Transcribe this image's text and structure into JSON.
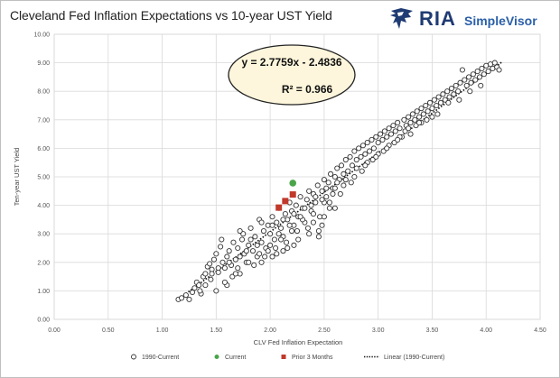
{
  "header": {
    "title": "Cleveland Fed Inflation Expectations vs 10-year UST Yield",
    "brand_name": "RIA",
    "brand_sub": "SimpleVisor",
    "brand_color": "#1f3b73",
    "logo_icon": "eagle-icon"
  },
  "chart_data": {
    "type": "scatter",
    "xlabel": "CLV Fed Inflation Expectation",
    "ylabel": "Ten-year UST Yield",
    "xlim": [
      0,
      4.5
    ],
    "ylim": [
      0,
      10
    ],
    "xticks": [
      "0.00",
      "0.50",
      "1.00",
      "1.50",
      "2.00",
      "2.50",
      "3.00",
      "3.50",
      "4.00",
      "4.50"
    ],
    "yticks": [
      "0.00",
      "1.00",
      "2.00",
      "3.00",
      "4.00",
      "5.00",
      "6.00",
      "7.00",
      "8.00",
      "9.00",
      "10.00"
    ],
    "grid": true,
    "legend_position": "bottom",
    "annotation": {
      "equation": "y = 2.7759x - 2.4836",
      "r_squared": "R² = 0.966"
    },
    "trendline": {
      "slope": 2.7759,
      "intercept": -2.4836,
      "x_range": [
        1.15,
        4.15
      ]
    },
    "series": [
      {
        "name": "1990-Current",
        "marker": "hollow-circle",
        "color": "#333333",
        "points": [
          [
            1.15,
            0.7
          ],
          [
            1.18,
            0.75
          ],
          [
            1.22,
            0.85
          ],
          [
            1.25,
            0.7
          ],
          [
            1.28,
            0.95
          ],
          [
            1.3,
            1.1
          ],
          [
            1.32,
            1.3
          ],
          [
            1.34,
            1.2
          ],
          [
            1.36,
            0.9
          ],
          [
            1.38,
            1.5
          ],
          [
            1.4,
            1.6
          ],
          [
            1.42,
            1.85
          ],
          [
            1.44,
            1.95
          ],
          [
            1.46,
            1.75
          ],
          [
            1.48,
            2.1
          ],
          [
            1.5,
            2.3
          ],
          [
            1.52,
            1.65
          ],
          [
            1.54,
            2.55
          ],
          [
            1.56,
            2.0
          ],
          [
            1.58,
            1.8
          ],
          [
            1.6,
            2.2
          ],
          [
            1.62,
            2.4
          ],
          [
            1.64,
            1.9
          ],
          [
            1.66,
            2.7
          ],
          [
            1.68,
            2.1
          ],
          [
            1.7,
            2.5
          ],
          [
            1.72,
            1.6
          ],
          [
            1.74,
            2.8
          ],
          [
            1.76,
            2.3
          ],
          [
            1.78,
            2.0
          ],
          [
            1.8,
            2.6
          ],
          [
            1.82,
            3.2
          ],
          [
            1.84,
            2.4
          ],
          [
            1.86,
            2.9
          ],
          [
            1.88,
            2.2
          ],
          [
            1.9,
            3.5
          ],
          [
            1.92,
            2.7
          ],
          [
            1.94,
            3.1
          ],
          [
            1.96,
            2.5
          ],
          [
            1.98,
            3.3
          ],
          [
            2.0,
            3.0
          ],
          [
            2.02,
            3.6
          ],
          [
            2.04,
            2.8
          ],
          [
            2.06,
            3.4
          ],
          [
            2.08,
            3.9
          ],
          [
            2.1,
            3.2
          ],
          [
            2.12,
            2.9
          ],
          [
            2.14,
            3.7
          ],
          [
            2.16,
            3.5
          ],
          [
            2.18,
            4.1
          ],
          [
            2.2,
            3.8
          ],
          [
            2.22,
            3.3
          ],
          [
            2.24,
            4.0
          ],
          [
            2.26,
            3.6
          ],
          [
            2.28,
            4.3
          ],
          [
            2.3,
            3.9
          ],
          [
            2.32,
            3.4
          ],
          [
            2.34,
            4.2
          ],
          [
            2.36,
            4.5
          ],
          [
            2.38,
            3.8
          ],
          [
            2.4,
            4.4
          ],
          [
            2.42,
            4.1
          ],
          [
            2.44,
            4.7
          ],
          [
            2.46,
            3.6
          ],
          [
            2.48,
            4.5
          ],
          [
            2.5,
            4.9
          ],
          [
            2.52,
            4.3
          ],
          [
            2.54,
            4.8
          ],
          [
            2.56,
            5.1
          ],
          [
            2.58,
            4.6
          ],
          [
            2.6,
            5.0
          ],
          [
            2.62,
            5.3
          ],
          [
            2.64,
            4.9
          ],
          [
            2.66,
            5.4
          ],
          [
            2.68,
            5.1
          ],
          [
            2.7,
            5.6
          ],
          [
            2.72,
            5.2
          ],
          [
            2.74,
            5.7
          ],
          [
            2.76,
            5.4
          ],
          [
            2.78,
            5.9
          ],
          [
            2.8,
            5.6
          ],
          [
            2.82,
            6.0
          ],
          [
            2.84,
            5.7
          ],
          [
            2.86,
            6.1
          ],
          [
            2.88,
            5.8
          ],
          [
            2.9,
            6.2
          ],
          [
            2.92,
            5.9
          ],
          [
            2.94,
            6.3
          ],
          [
            2.96,
            6.0
          ],
          [
            2.98,
            6.4
          ],
          [
            3.0,
            6.2
          ],
          [
            3.02,
            6.5
          ],
          [
            3.04,
            6.3
          ],
          [
            3.06,
            6.6
          ],
          [
            3.08,
            6.4
          ],
          [
            3.1,
            6.7
          ],
          [
            3.12,
            6.5
          ],
          [
            3.14,
            6.8
          ],
          [
            3.16,
            6.6
          ],
          [
            3.18,
            6.9
          ],
          [
            3.2,
            6.7
          ],
          [
            3.22,
            6.4
          ],
          [
            3.24,
            7.0
          ],
          [
            3.26,
            6.8
          ],
          [
            3.28,
            7.1
          ],
          [
            3.3,
            6.9
          ],
          [
            3.32,
            7.2
          ],
          [
            3.34,
            7.0
          ],
          [
            3.36,
            7.3
          ],
          [
            3.38,
            7.1
          ],
          [
            3.4,
            7.4
          ],
          [
            3.42,
            7.2
          ],
          [
            3.44,
            7.5
          ],
          [
            3.46,
            7.3
          ],
          [
            3.48,
            7.6
          ],
          [
            3.5,
            7.4
          ],
          [
            3.52,
            7.7
          ],
          [
            3.54,
            7.5
          ],
          [
            3.56,
            7.8
          ],
          [
            3.58,
            7.6
          ],
          [
            3.6,
            7.9
          ],
          [
            3.62,
            7.7
          ],
          [
            3.64,
            8.0
          ],
          [
            3.66,
            7.8
          ],
          [
            3.68,
            8.1
          ],
          [
            3.7,
            7.9
          ],
          [
            3.72,
            8.2
          ],
          [
            3.74,
            8.0
          ],
          [
            3.76,
            8.3
          ],
          [
            3.78,
            8.75
          ],
          [
            3.8,
            8.4
          ],
          [
            3.82,
            8.2
          ],
          [
            3.84,
            8.5
          ],
          [
            3.86,
            8.3
          ],
          [
            3.88,
            8.6
          ],
          [
            3.9,
            8.4
          ],
          [
            3.92,
            8.7
          ],
          [
            3.94,
            8.5
          ],
          [
            3.96,
            8.8
          ],
          [
            3.98,
            8.6
          ],
          [
            4.0,
            8.9
          ],
          [
            4.02,
            8.7
          ],
          [
            4.04,
            8.95
          ],
          [
            4.06,
            8.8
          ],
          [
            4.08,
            9.0
          ],
          [
            4.1,
            8.85
          ],
          [
            4.12,
            8.75
          ],
          [
            1.45,
            1.4
          ],
          [
            1.55,
            2.8
          ],
          [
            1.65,
            1.5
          ],
          [
            1.75,
            3.0
          ],
          [
            1.85,
            1.9
          ],
          [
            1.95,
            2.2
          ],
          [
            2.05,
            2.5
          ],
          [
            2.15,
            2.7
          ],
          [
            2.25,
            3.1
          ],
          [
            2.35,
            3.2
          ],
          [
            2.45,
            3.1
          ],
          [
            2.55,
            3.9
          ],
          [
            2.65,
            4.4
          ],
          [
            2.75,
            4.8
          ],
          [
            2.85,
            5.2
          ],
          [
            2.95,
            5.6
          ],
          [
            3.05,
            5.9
          ],
          [
            3.15,
            6.2
          ],
          [
            3.25,
            6.6
          ],
          [
            3.35,
            6.8
          ],
          [
            3.45,
            7.0
          ],
          [
            3.55,
            7.2
          ],
          [
            3.65,
            7.6
          ],
          [
            3.75,
            7.7
          ],
          [
            3.85,
            8.0
          ],
          [
            3.95,
            8.2
          ],
          [
            1.6,
            1.2
          ],
          [
            1.7,
            1.8
          ],
          [
            1.8,
            2.0
          ],
          [
            1.9,
            2.3
          ],
          [
            2.0,
            2.6
          ],
          [
            2.1,
            2.8
          ],
          [
            2.2,
            3.1
          ],
          [
            2.3,
            3.5
          ],
          [
            2.4,
            3.7
          ],
          [
            2.5,
            4.1
          ],
          [
            2.6,
            4.6
          ],
          [
            2.7,
            4.9
          ],
          [
            2.8,
            5.3
          ],
          [
            2.9,
            5.5
          ],
          [
            3.0,
            5.8
          ],
          [
            3.1,
            6.1
          ],
          [
            3.2,
            6.4
          ],
          [
            3.3,
            6.5
          ],
          [
            3.4,
            6.9
          ],
          [
            3.5,
            7.1
          ],
          [
            1.5,
            1.0
          ],
          [
            1.58,
            1.3
          ],
          [
            1.68,
            1.6
          ],
          [
            1.78,
            2.4
          ],
          [
            1.88,
            2.6
          ],
          [
            1.98,
            2.4
          ],
          [
            2.08,
            3.0
          ],
          [
            2.18,
            3.3
          ],
          [
            2.28,
            3.6
          ],
          [
            2.38,
            4.0
          ],
          [
            2.48,
            4.2
          ],
          [
            2.58,
            4.4
          ],
          [
            2.68,
            4.7
          ],
          [
            2.78,
            5.0
          ],
          [
            2.88,
            5.4
          ],
          [
            2.98,
            5.7
          ],
          [
            3.08,
            6.0
          ],
          [
            3.18,
            6.3
          ],
          [
            3.28,
            6.7
          ],
          [
            3.38,
            6.9
          ],
          [
            1.72,
            3.1
          ],
          [
            1.82,
            2.8
          ],
          [
            1.92,
            3.4
          ],
          [
            2.02,
            3.3
          ],
          [
            2.12,
            3.5
          ],
          [
            2.22,
            3.7
          ],
          [
            2.32,
            3.9
          ],
          [
            2.42,
            4.3
          ],
          [
            2.52,
            4.6
          ],
          [
            2.62,
            4.8
          ],
          [
            1.35,
            1.0
          ],
          [
            1.4,
            1.2
          ],
          [
            1.46,
            1.6
          ],
          [
            1.52,
            1.8
          ],
          [
            1.62,
            2.0
          ],
          [
            1.72,
            2.2
          ],
          [
            1.92,
            2.0
          ],
          [
            2.02,
            2.2
          ],
          [
            2.12,
            2.4
          ],
          [
            2.22,
            2.6
          ],
          [
            2.4,
            3.4
          ],
          [
            2.45,
            2.9
          ],
          [
            2.5,
            3.6
          ],
          [
            2.55,
            4.1
          ],
          [
            2.6,
            3.9
          ],
          [
            2.48,
            3.3
          ],
          [
            2.36,
            3.0
          ],
          [
            2.26,
            2.8
          ],
          [
            2.16,
            2.5
          ],
          [
            2.06,
            2.3
          ]
        ]
      },
      {
        "name": "Current",
        "marker": "filled-circle",
        "color": "#4aa54a",
        "points": [
          [
            2.21,
            4.78
          ]
        ]
      },
      {
        "name": "Prior 3 Months",
        "marker": "filled-square",
        "color": "#c0392b",
        "points": [
          [
            2.08,
            3.92
          ],
          [
            2.14,
            4.15
          ],
          [
            2.21,
            4.38
          ]
        ]
      }
    ],
    "legend": [
      {
        "label": "1990-Current",
        "marker": "hollow-circle"
      },
      {
        "label": "Current",
        "marker": "filled-circle"
      },
      {
        "label": "Prior 3 Months",
        "marker": "filled-square"
      },
      {
        "label": "Linear (1990-Current)",
        "marker": "dotted-line"
      }
    ]
  }
}
